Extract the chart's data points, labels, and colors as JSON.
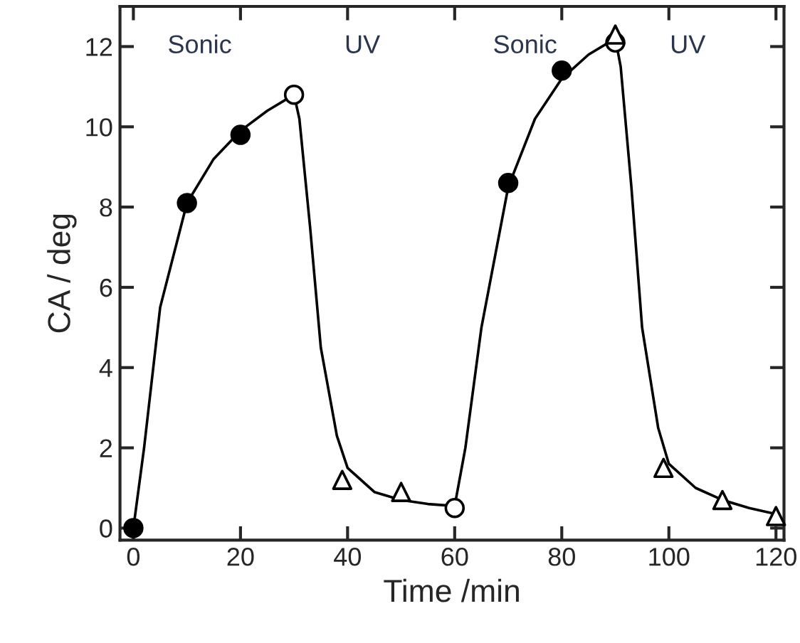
{
  "chart_data": {
    "type": "scatter",
    "xlabel": "Time /min",
    "ylabel": "CA / deg",
    "xlim": [
      -2.5,
      121.5
    ],
    "ylim": [
      -0.3,
      13
    ],
    "xticks": [
      0,
      20,
      40,
      60,
      80,
      100,
      120
    ],
    "yticks": [
      0,
      2,
      4,
      6,
      8,
      10,
      12
    ],
    "grid": false,
    "legend": false,
    "series": [
      {
        "type": "line",
        "color": "#000000",
        "marker": "none",
        "x": [
          0,
          2,
          5,
          10,
          15,
          20,
          25,
          30,
          31,
          33,
          35,
          38,
          40,
          45,
          50,
          55,
          60,
          62,
          65,
          70,
          75,
          80,
          85,
          90,
          91,
          93,
          95,
          98,
          100,
          105,
          110,
          115,
          120
        ],
        "values": [
          0,
          2,
          5.5,
          8.1,
          9.2,
          9.9,
          10.4,
          10.8,
          10.2,
          7.5,
          4.5,
          2.3,
          1.5,
          0.9,
          0.7,
          0.6,
          0.55,
          2,
          5,
          8.5,
          10.2,
          11.2,
          11.8,
          12.2,
          11.5,
          8.5,
          5,
          2.5,
          1.6,
          1.0,
          0.7,
          0.5,
          0.35
        ]
      },
      {
        "color": "#000000",
        "marker": "circle",
        "x": [
          0,
          10,
          20,
          70,
          80
        ],
        "values": [
          0,
          8.1,
          9.8,
          8.6,
          11.4
        ]
      },
      {
        "color": "#ffffff",
        "marker": "circle",
        "x": [
          30,
          60,
          90
        ],
        "values": [
          10.8,
          0.5,
          12.1
        ]
      },
      {
        "color": "#ffffff",
        "marker": "triangle",
        "x": [
          39,
          50,
          90,
          99,
          110,
          120
        ],
        "values": [
          1.2,
          0.9,
          12.3,
          1.5,
          0.7,
          0.3
        ]
      }
    ],
    "annotations": [
      "Sonic",
      "UV",
      "Sonic",
      "UV"
    ]
  }
}
